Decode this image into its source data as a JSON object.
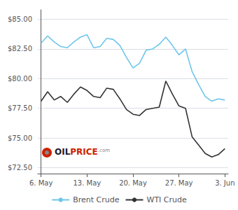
{
  "chart_data": {
    "type": "line",
    "series": [
      {
        "name": "Brent Crude",
        "color": "#6ec6ea",
        "x": [
          0,
          1,
          2,
          3,
          4,
          5,
          6,
          7,
          8,
          9,
          10,
          11,
          12,
          13,
          14,
          15,
          16,
          17,
          18,
          19,
          20,
          21,
          22,
          23,
          24,
          25,
          26,
          27,
          28
        ],
        "values": [
          83.0,
          83.6,
          83.1,
          82.7,
          82.6,
          83.1,
          83.5,
          83.7,
          82.6,
          82.7,
          83.4,
          83.3,
          82.8,
          81.8,
          80.9,
          81.3,
          82.4,
          82.5,
          82.9,
          83.5,
          82.8,
          82.0,
          82.5,
          80.6,
          79.5,
          78.5,
          78.1,
          78.3,
          78.2
        ]
      },
      {
        "name": "WTI Crude",
        "color": "#333333",
        "x": [
          0,
          1,
          2,
          3,
          4,
          5,
          6,
          7,
          8,
          9,
          10,
          11,
          12,
          13,
          14,
          15,
          16,
          17,
          18,
          19,
          20,
          21,
          22,
          23,
          24,
          25,
          26,
          27,
          28
        ],
        "values": [
          78.1,
          78.9,
          78.2,
          78.5,
          78.0,
          78.7,
          79.3,
          79.0,
          78.5,
          78.4,
          79.2,
          79.1,
          78.3,
          77.4,
          77.0,
          76.9,
          77.4,
          77.5,
          77.6,
          79.8,
          78.7,
          77.7,
          77.5,
          75.1,
          74.4,
          73.7,
          73.4,
          73.6,
          74.1
        ]
      }
    ],
    "xlim": [
      -0.5,
      28.5
    ],
    "xticks": [
      {
        "value": 0,
        "label": "6. May"
      },
      {
        "value": 7,
        "label": "13. May"
      },
      {
        "value": 14,
        "label": "20. May"
      },
      {
        "value": 21,
        "label": "27. May"
      },
      {
        "value": 28,
        "label": "3. Jun"
      }
    ],
    "ylim": [
      72.0,
      85.8
    ],
    "yticks": [
      {
        "value": 72.5,
        "label": "$72.50"
      },
      {
        "value": 75.0,
        "label": "$75.00"
      },
      {
        "value": 77.5,
        "label": "$77.50"
      },
      {
        "value": 80.0,
        "label": "$80.00"
      },
      {
        "value": 82.5,
        "label": "$82.50"
      },
      {
        "value": 85.0,
        "label": "$85.00"
      }
    ],
    "grid": "y",
    "legend": "bottom",
    "annotations": [
      {
        "text": "OIL",
        "color": "#1a1a2e"
      },
      {
        "text": "PRICE",
        "color": "#cc2200"
      },
      {
        "text": ".com",
        "color": "#888888"
      }
    ]
  }
}
